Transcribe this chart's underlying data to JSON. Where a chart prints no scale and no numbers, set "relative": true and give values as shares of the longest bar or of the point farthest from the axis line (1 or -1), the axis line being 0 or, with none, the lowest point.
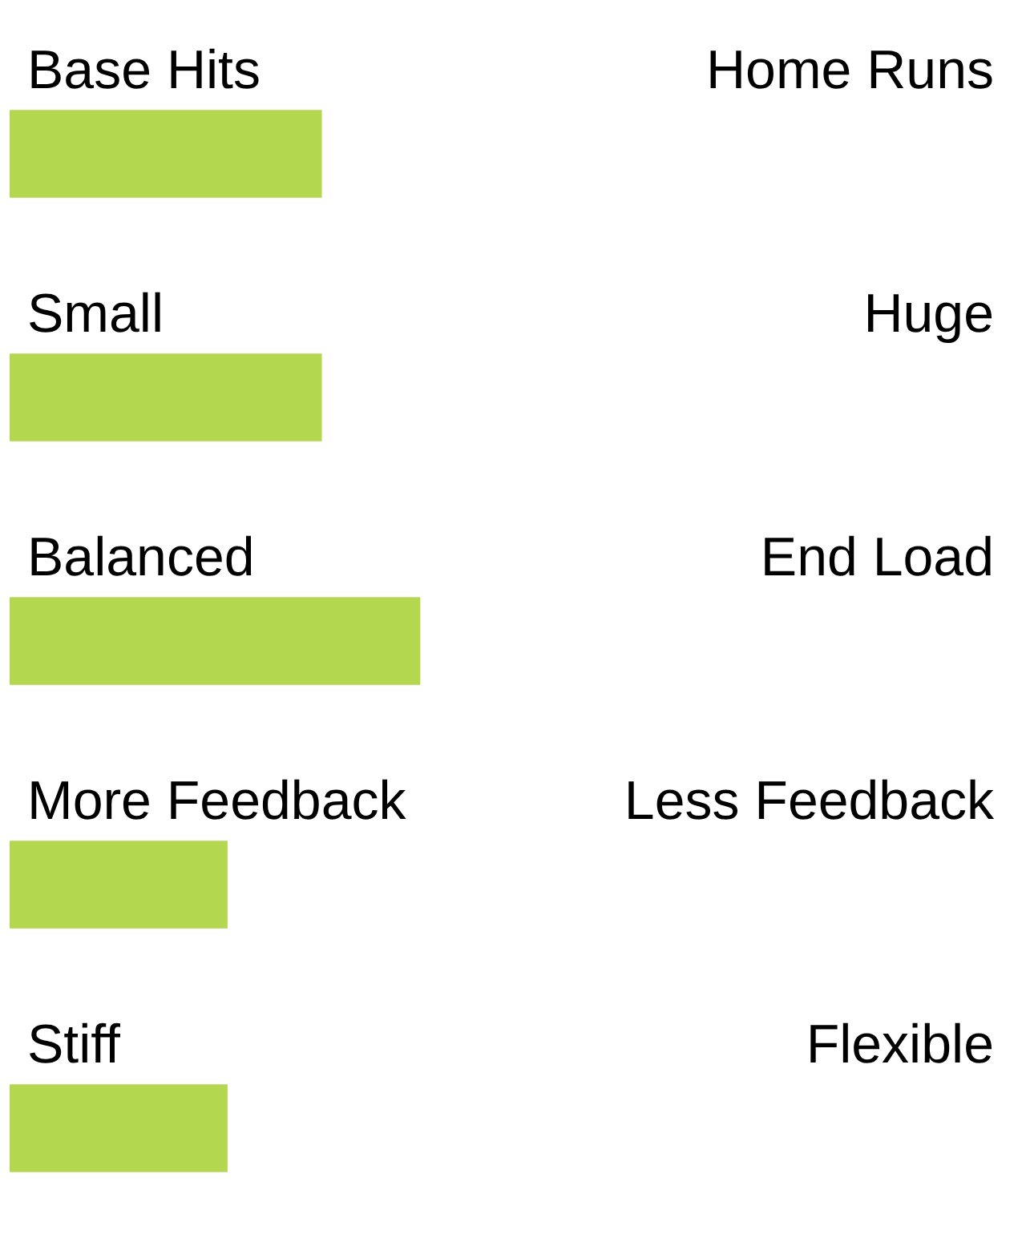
{
  "chart_data": {
    "type": "bar",
    "orientation": "horizontal",
    "relative": true,
    "categories": [
      "Base Hits",
      "Small",
      "Balanced",
      "More Feedback",
      "Stiff"
    ],
    "annotations": [
      "Home Runs",
      "Huge",
      "End Load",
      "Less Feedback",
      "Flexible"
    ],
    "values": [
      0.76,
      0.76,
      1,
      0.53,
      0.53
    ],
    "color": "#b3d84f"
  }
}
